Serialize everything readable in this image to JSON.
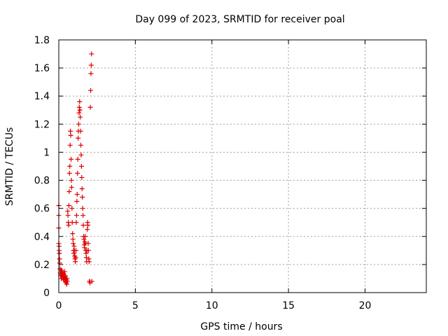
{
  "chart_data": {
    "type": "scatter",
    "title": "Day 099 of 2023, SRMTID for receiver poal",
    "xlabel": "GPS time / hours",
    "ylabel": "SRMTID / TECUs",
    "xlim": [
      0,
      24
    ],
    "ylim": [
      0,
      1.8
    ],
    "x_ticks": [
      0,
      5,
      10,
      15,
      20
    ],
    "x_tick_labels": [
      "0",
      "5",
      "10",
      "15",
      "20"
    ],
    "y_ticks": [
      0,
      0.2,
      0.4,
      0.6,
      0.8,
      1.0,
      1.2,
      1.4,
      1.6,
      1.8
    ],
    "y_tick_labels": [
      "0",
      "0.2",
      "0.4",
      "0.6",
      "0.8",
      "1",
      "1.2",
      "1.4",
      "1.6",
      "1.8"
    ],
    "grid": true,
    "marker_color": "#dd0000",
    "series": [
      {
        "name": "SRMTID",
        "marker": "+",
        "x": [
          0.0,
          0.0,
          0.0,
          0.0,
          0.02,
          0.02,
          0.04,
          0.05,
          0.06,
          0.08,
          0.1,
          0.12,
          0.14,
          0.15,
          0.16,
          0.18,
          0.2,
          0.22,
          0.24,
          0.26,
          0.28,
          0.3,
          0.32,
          0.34,
          0.36,
          0.38,
          0.4,
          0.42,
          0.44,
          0.46,
          0.48,
          0.5,
          0.52,
          0.54,
          0.56,
          0.58,
          0.6,
          0.62,
          0.64,
          0.66,
          0.68,
          0.7,
          0.72,
          0.74,
          0.76,
          0.78,
          0.8,
          0.82,
          0.84,
          0.86,
          0.88,
          0.9,
          0.92,
          0.94,
          0.96,
          0.98,
          1.0,
          1.02,
          1.04,
          1.06,
          1.08,
          1.1,
          1.12,
          1.14,
          1.16,
          1.18,
          1.2,
          1.22,
          1.24,
          1.26,
          1.28,
          1.3,
          1.32,
          1.34,
          1.36,
          1.38,
          1.4,
          1.42,
          1.44,
          1.46,
          1.48,
          1.5,
          1.52,
          1.54,
          1.56,
          1.58,
          1.6,
          1.62,
          1.64,
          1.66,
          1.68,
          1.7,
          1.72,
          1.74,
          1.76,
          1.78,
          1.8,
          1.82,
          1.84,
          1.86,
          1.88,
          1.9,
          1.92,
          1.94,
          1.96,
          1.98,
          2.0,
          2.02,
          2.04,
          2.06,
          2.08,
          2.1,
          2.12,
          2.14,
          2.16
        ],
        "y": [
          0.62,
          0.55,
          0.46,
          0.35,
          0.33,
          0.3,
          0.28,
          0.24,
          0.21,
          0.17,
          0.14,
          0.12,
          0.13,
          0.16,
          0.1,
          0.12,
          0.15,
          0.13,
          0.11,
          0.12,
          0.14,
          0.1,
          0.09,
          0.13,
          0.11,
          0.15,
          0.09,
          0.12,
          0.08,
          0.1,
          0.07,
          0.09,
          0.06,
          0.1,
          0.08,
          0.58,
          0.55,
          0.5,
          0.48,
          0.62,
          0.72,
          0.85,
          0.9,
          1.05,
          1.15,
          1.12,
          0.95,
          0.8,
          0.75,
          0.6,
          0.5,
          0.42,
          0.38,
          0.35,
          0.3,
          0.28,
          0.33,
          0.3,
          0.26,
          0.24,
          0.22,
          0.25,
          0.3,
          0.5,
          0.55,
          0.65,
          0.7,
          0.85,
          0.95,
          1.1,
          1.15,
          1.2,
          1.28,
          1.32,
          1.36,
          1.3,
          1.25,
          1.15,
          1.05,
          0.98,
          0.9,
          0.82,
          0.74,
          0.68,
          0.6,
          0.55,
          0.48,
          0.4,
          0.38,
          0.34,
          0.32,
          0.36,
          0.4,
          0.35,
          0.3,
          0.28,
          0.25,
          0.22,
          0.3,
          0.45,
          0.5,
          0.48,
          0.35,
          0.3,
          0.24,
          0.22,
          0.08,
          0.08,
          0.07,
          1.32,
          1.44,
          1.56,
          1.62,
          1.7,
          0.08
        ]
      }
    ]
  }
}
